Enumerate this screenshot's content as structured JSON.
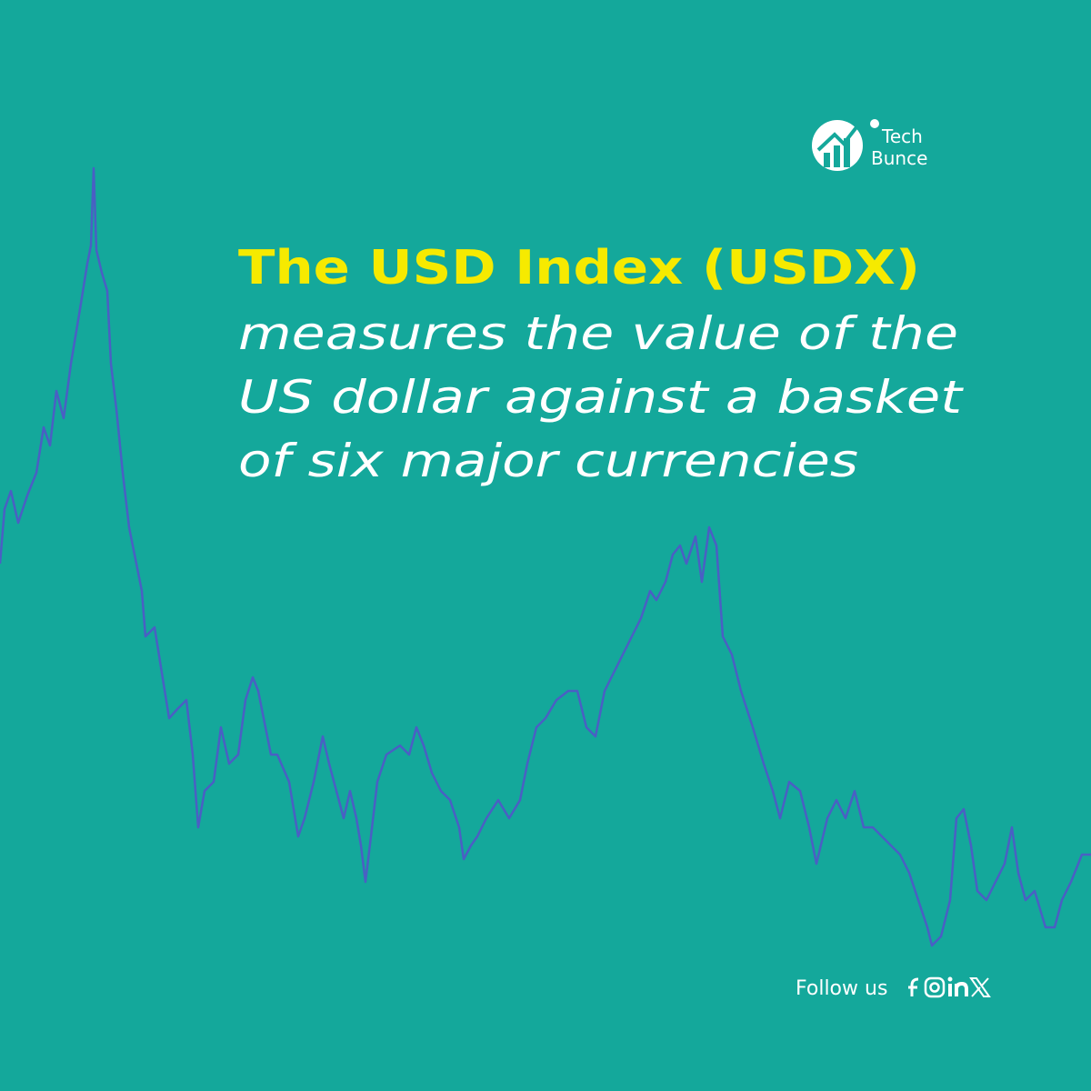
{
  "brand": {
    "top": "Tech",
    "bottom": "Bunce"
  },
  "headline": "The USD Index (USDX)",
  "body_lines": [
    "measures the value of the",
    "US dollar against a basket",
    "of six major currencies"
  ],
  "footer": {
    "follow": "Follow us"
  }
}
